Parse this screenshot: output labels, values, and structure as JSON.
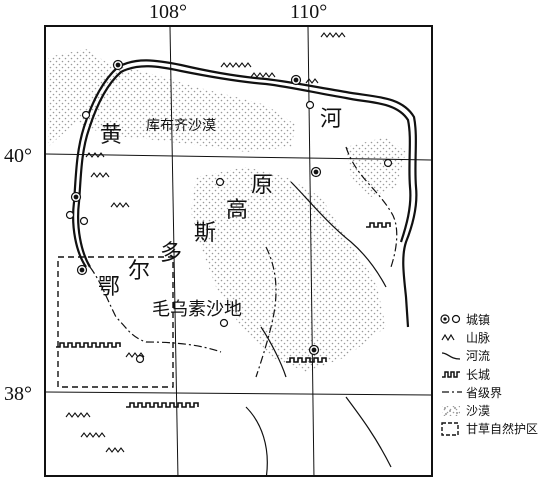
{
  "map": {
    "longitude_labels": [
      "108°",
      "110°"
    ],
    "latitude_labels": [
      "40°",
      "38°"
    ],
    "place_labels": {
      "yellow_char": "黄",
      "river_char": "河",
      "kubuqi": "库布齐沙漠",
      "ordos_chars": [
        "鄂",
        "尔",
        "多",
        "斯",
        "高",
        "原"
      ],
      "maowusu": "毛乌素沙地"
    }
  },
  "legend": {
    "items": [
      {
        "label": "城镇",
        "icon": "town-icon"
      },
      {
        "label": "山脉",
        "icon": "mountain-icon"
      },
      {
        "label": "河流",
        "icon": "river-icon"
      },
      {
        "label": "长城",
        "icon": "great-wall-icon"
      },
      {
        "label": "省级界",
        "icon": "province-boundary-icon"
      },
      {
        "label": "沙漠",
        "icon": "desert-icon"
      },
      {
        "label": "甘草自然护区",
        "icon": "licorice-reserve-icon"
      }
    ]
  },
  "colors": {
    "ink": "#111111",
    "desert_dot": "#9a9a9a",
    "background": "#ffffff"
  }
}
